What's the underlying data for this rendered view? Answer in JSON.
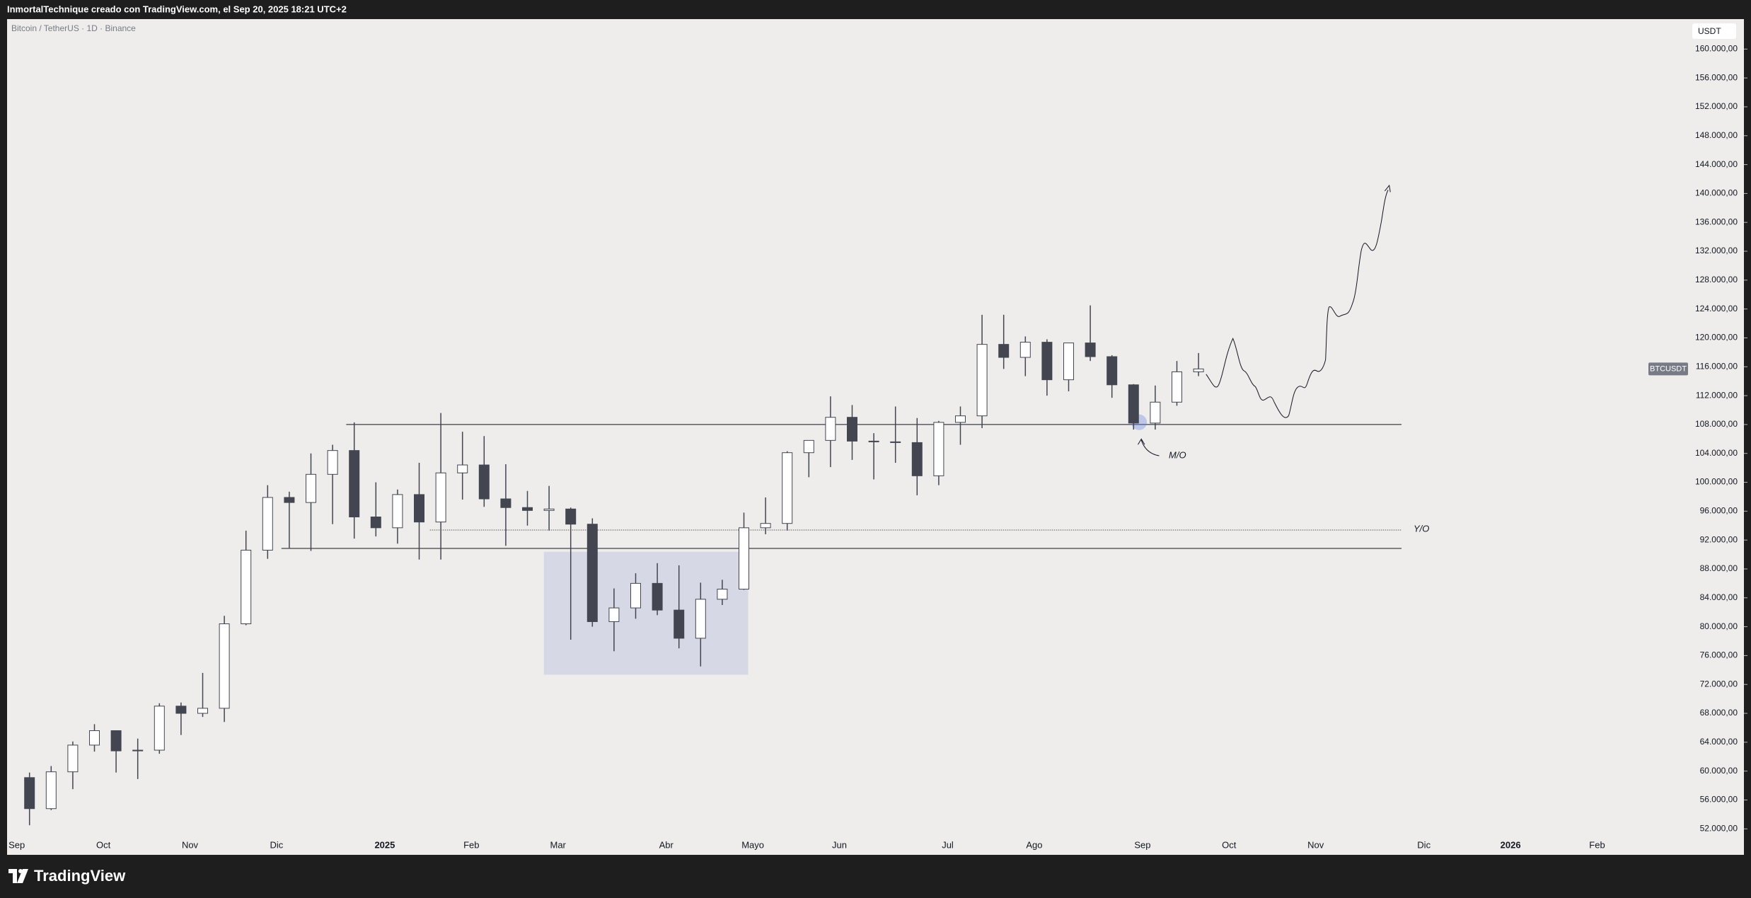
{
  "header": {
    "text": "InmortalTechnique creado con TradingView.com, el Sep 20, 2025 18:21 UTC+2"
  },
  "footer": {
    "brand": "TradingView"
  },
  "chart_data": {
    "type": "candlestick",
    "title": "Bitcoin / TetherUS · 1D · Binance",
    "currency": "USDT",
    "symbol_label": "BTCUSDT",
    "annotations": [
      "Y/O",
      "M/O"
    ],
    "up_color": "#ffffff",
    "down_color": "#434651",
    "wick_color": "#434651",
    "categories": [
      "Sep",
      null,
      null,
      null,
      "Oct",
      null,
      null,
      null,
      "Nov",
      null,
      null,
      null,
      "Dic",
      null,
      null,
      null,
      null,
      "2025",
      null,
      null,
      null,
      "Feb",
      null,
      null,
      null,
      "Mar",
      null,
      null,
      null,
      null,
      "Abr",
      null,
      null,
      null,
      "Mayo",
      null,
      null,
      null,
      "Jun",
      null,
      null,
      null,
      null,
      "Jul",
      null,
      null,
      null,
      "Ago",
      null,
      null,
      null,
      null,
      "Sep",
      null,
      null,
      null,
      "Oct",
      null,
      null,
      null,
      "Nov",
      null,
      null,
      null,
      null,
      "Dic",
      null,
      null,
      null,
      "2026",
      null,
      null,
      null,
      "Feb",
      null,
      null,
      null
    ],
    "open": [
      59100,
      54800,
      59900,
      63600,
      65600,
      62800,
      62900,
      69000,
      68000,
      68700,
      80400,
      90600,
      97900,
      97200,
      101100,
      104400,
      95200,
      93700,
      98300,
      94500,
      101300,
      102400,
      97700,
      96500,
      96100,
      96300,
      94200,
      80700,
      82600,
      86000,
      82300,
      78400,
      83800,
      85200,
      93700,
      94300,
      104100,
      105800,
      109000,
      105700,
      105600,
      105500,
      100900,
      108300,
      109200,
      119100,
      117300,
      119400,
      114200,
      119300,
      117400,
      113500,
      108200,
      111100,
      115300,
      null,
      null,
      null,
      null,
      null,
      null,
      null,
      null,
      null,
      null,
      null,
      null,
      null,
      null,
      null,
      null,
      null,
      null,
      null,
      null,
      null,
      null
    ],
    "high": [
      59800,
      60700,
      64100,
      66500,
      65600,
      64500,
      69400,
      69500,
      73600,
      81500,
      93300,
      99600,
      98700,
      104000,
      105200,
      108300,
      100000,
      99000,
      102700,
      109600,
      107000,
      106400,
      102500,
      98800,
      99500,
      96500,
      95000,
      85300,
      87400,
      88800,
      88500,
      86100,
      86500,
      95800,
      97900,
      104300,
      105800,
      111900,
      110700,
      106800,
      110500,
      108900,
      108500,
      110500,
      123200,
      123200,
      120200,
      119800,
      119300,
      124500,
      117600,
      113600,
      113400,
      116800,
      117900,
      null,
      null,
      null,
      null,
      null,
      null,
      null,
      null,
      null,
      null,
      null,
      null,
      null,
      null,
      null,
      null,
      null,
      null,
      null,
      null,
      null,
      null
    ],
    "low": [
      52500,
      54600,
      57500,
      62700,
      59800,
      58900,
      62400,
      65000,
      67500,
      66800,
      80200,
      89400,
      90800,
      90500,
      94200,
      92200,
      92500,
      91500,
      89300,
      89300,
      97600,
      96600,
      91200,
      94000,
      93300,
      78200,
      80000,
      76600,
      81100,
      81600,
      77000,
      74500,
      83000,
      85100,
      92800,
      93300,
      100700,
      102100,
      103100,
      100400,
      102700,
      98200,
      99600,
      105200,
      107500,
      115700,
      114700,
      112000,
      112600,
      116800,
      111700,
      107300,
      107300,
      110600,
      114700,
      null,
      null,
      null,
      null,
      null,
      null,
      null,
      null,
      null,
      null,
      null,
      null,
      null,
      null,
      null,
      null,
      null,
      null,
      null,
      null,
      null,
      null
    ],
    "close": [
      54800,
      59900,
      63600,
      65600,
      62800,
      62900,
      69000,
      68000,
      68700,
      80400,
      90600,
      97900,
      97200,
      101100,
      104400,
      95200,
      93700,
      98300,
      94500,
      101300,
      102400,
      97700,
      96500,
      96100,
      96300,
      94200,
      80700,
      82600,
      86000,
      82300,
      78400,
      83800,
      85200,
      93700,
      94300,
      104100,
      105800,
      109000,
      105700,
      105600,
      105500,
      100900,
      108300,
      109200,
      119100,
      117300,
      119400,
      114200,
      119300,
      117400,
      113500,
      108200,
      111100,
      115300,
      115700,
      null,
      null,
      null,
      null,
      null,
      null,
      null,
      null,
      null,
      null,
      null,
      null,
      null,
      null,
      null,
      null,
      null,
      null,
      null,
      null,
      null,
      null
    ],
    "ylim": [
      48500,
      164150
    ],
    "yticks": [
      {
        "value": 52000,
        "label": "52.000,00"
      },
      {
        "value": 56000,
        "label": "56.000,00"
      },
      {
        "value": 60000,
        "label": "60.000,00"
      },
      {
        "value": 64000,
        "label": "64.000,00"
      },
      {
        "value": 68000,
        "label": "68.000,00"
      },
      {
        "value": 72000,
        "label": "72.000,00"
      },
      {
        "value": 76000,
        "label": "76.000,00"
      },
      {
        "value": 80000,
        "label": "80.000,00"
      },
      {
        "value": 84000,
        "label": "84.000,00"
      },
      {
        "value": 88000,
        "label": "88.000,00"
      },
      {
        "value": 92000,
        "label": "92.000,00"
      },
      {
        "value": 96000,
        "label": "96.000,00"
      },
      {
        "value": 100000,
        "label": "100.000,00"
      },
      {
        "value": 104000,
        "label": "104.000,00"
      },
      {
        "value": 108000,
        "label": "108.000,00"
      },
      {
        "value": 112000,
        "label": "112.000,00"
      },
      {
        "value": 116000,
        "label": "116.000,00"
      },
      {
        "value": 120000,
        "label": "120.000,00"
      },
      {
        "value": 124000,
        "label": "124.000,00"
      },
      {
        "value": 128000,
        "label": "128.000,00"
      },
      {
        "value": 132000,
        "label": "132.000,00"
      },
      {
        "value": 136000,
        "label": "136.000,00"
      },
      {
        "value": 140000,
        "label": "140.000,00"
      },
      {
        "value": 144000,
        "label": "144.000,00"
      },
      {
        "value": 148000,
        "label": "148.000,00"
      },
      {
        "value": 152000,
        "label": "152.000,00"
      },
      {
        "value": 156000,
        "label": "156.000,00"
      },
      {
        "value": 160000,
        "label": "160.000,00"
      }
    ],
    "grid": false
  }
}
